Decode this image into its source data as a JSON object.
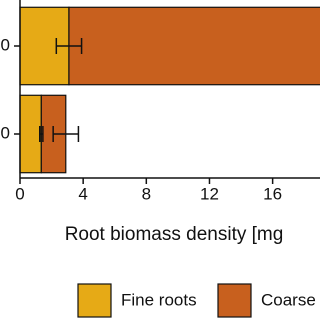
{
  "chart_data": {
    "type": "stacked-barh",
    "categories": [
      "0",
      "0"
    ],
    "series": [
      {
        "name": "Fine roots",
        "color": "#e6aa16",
        "values": [
          3.1,
          1.35
        ],
        "errors": [
          0.8,
          0.1
        ]
      },
      {
        "name": "Coarse",
        "color": "#c8601e",
        "values": [
          16,
          1.55
        ],
        "errors": [
          null,
          0.8
        ]
      }
    ],
    "x_label": "Root biomass density [mg",
    "xlim": [
      0,
      19
    ],
    "xticks": [
      0,
      4,
      8,
      12,
      16
    ]
  }
}
